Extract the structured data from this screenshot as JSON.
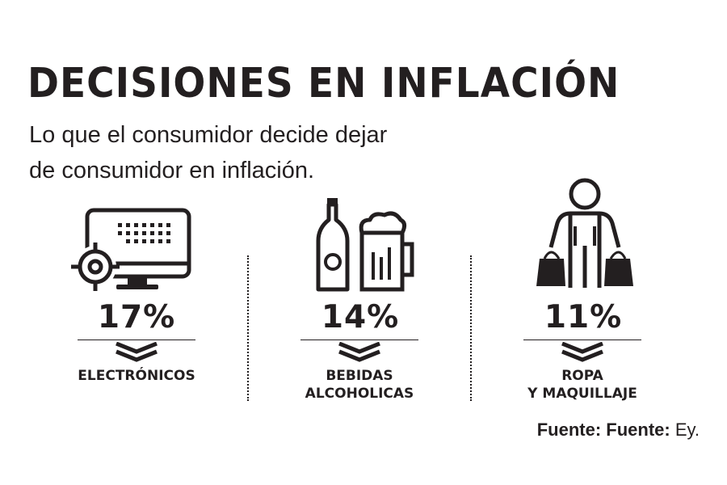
{
  "chart_data": {
    "type": "table",
    "title": "DECISIONES EN INFLACIÓN",
    "subtitle_line1": "Lo que el consumidor decide dejar",
    "subtitle_line2": "de consumidor en inflación.",
    "categories": [
      "ELECTRÓNICOS",
      "BEBIDAS\nALCOHOLICAS",
      "ROPA\nY MAQUILLAJE"
    ],
    "values": [
      17,
      14,
      11
    ],
    "value_labels": [
      "17%",
      "14%",
      "11%"
    ],
    "unit": "%",
    "icons": [
      "monitor-target-icon",
      "beer-bottle-mug-icon",
      "person-shopping-bags-icon"
    ],
    "source_bold": "Fuente: Fuente:",
    "source_value": "Ey."
  },
  "colors": {
    "ink": "#231f20",
    "background": "#ffffff"
  }
}
